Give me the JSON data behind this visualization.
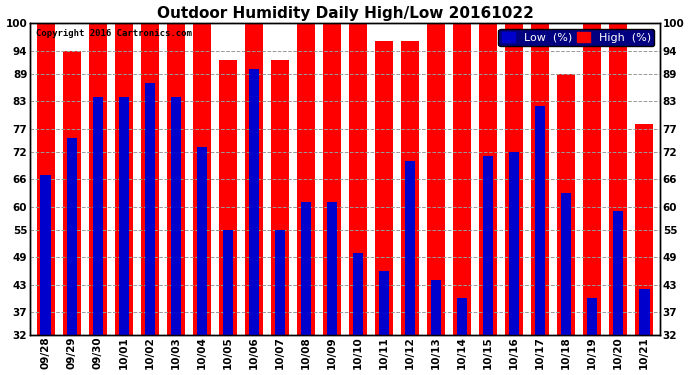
{
  "title": "Outdoor Humidity Daily High/Low 20161022",
  "copyright": "Copyright 2016 Cartronics.com",
  "categories": [
    "09/28",
    "09/29",
    "09/30",
    "10/01",
    "10/02",
    "10/03",
    "10/04",
    "10/05",
    "10/06",
    "10/07",
    "10/08",
    "10/09",
    "10/10",
    "10/11",
    "10/12",
    "10/13",
    "10/14",
    "10/15",
    "10/16",
    "10/17",
    "10/18",
    "10/19",
    "10/20",
    "10/21"
  ],
  "high": [
    100,
    94,
    100,
    100,
    100,
    100,
    100,
    92,
    100,
    92,
    100,
    100,
    100,
    96,
    96,
    100,
    100,
    100,
    100,
    100,
    89,
    100,
    100,
    78
  ],
  "low": [
    67,
    75,
    84,
    84,
    87,
    84,
    73,
    55,
    90,
    55,
    61,
    61,
    50,
    46,
    70,
    44,
    40,
    71,
    72,
    82,
    63,
    40,
    59,
    42
  ],
  "high_color": "#ff0000",
  "low_color": "#0000cc",
  "bg_color": "#ffffff",
  "grid_color": "#999999",
  "yticks": [
    32,
    37,
    43,
    49,
    55,
    60,
    66,
    72,
    77,
    83,
    89,
    94,
    100
  ],
  "ymin": 32,
  "ymax": 100,
  "high_bar_width": 0.7,
  "low_bar_width": 0.4,
  "title_fontsize": 11,
  "tick_fontsize": 7.5,
  "legend_fontsize": 8
}
